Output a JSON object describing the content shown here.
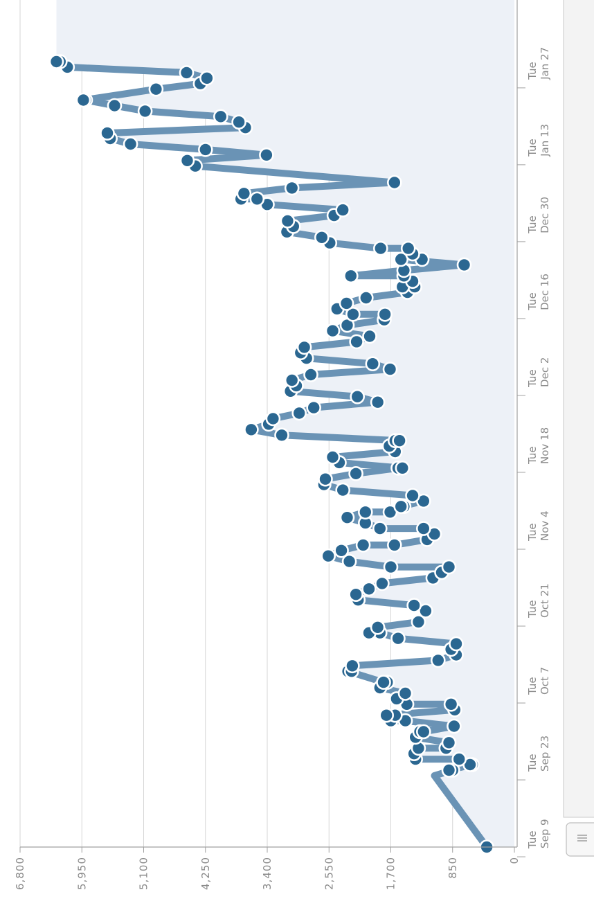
{
  "chart_data": {
    "type": "line",
    "orientation": "rotated-90",
    "y_tick_labels": [
      "0",
      "850",
      "1,700",
      "2,550",
      "3,400",
      "4,250",
      "5,100",
      "5,950",
      "6,800"
    ],
    "y_ticks": [
      0,
      850,
      1700,
      2550,
      3400,
      4250,
      5100,
      5950,
      6800
    ],
    "ylim": [
      0,
      6800
    ],
    "x_tick_labels": [
      {
        "day": "Tue",
        "date": "Sep 9"
      },
      {
        "day": "Tue",
        "date": "Sep 23"
      },
      {
        "day": "Tue",
        "date": "Oct 7"
      },
      {
        "day": "Tue",
        "date": "Oct 21"
      },
      {
        "day": "Tue",
        "date": "Nov 4"
      },
      {
        "day": "Tue",
        "date": "Nov 18"
      },
      {
        "day": "Tue",
        "date": "Dec 2"
      },
      {
        "day": "Tue",
        "date": "Dec 16"
      },
      {
        "day": "Tue",
        "date": "Dec 30"
      },
      {
        "day": "Tue",
        "date": "Jan 13"
      },
      {
        "day": "Tue",
        "date": "Jan 27"
      }
    ],
    "xlim": [
      "Sep 8",
      "Feb 2"
    ],
    "grid": true,
    "colors": {
      "line": "#6a93b5",
      "marker": "#2b6791",
      "area": "#edf1f7",
      "grid": "#d6d6d6",
      "axis": "#a0a0a0"
    },
    "series": [
      {
        "points": [
          [
            "Sep 8",
            380
          ],
          [
            "Sep 21",
            1100
          ],
          [
            "Sep 22",
            850
          ],
          [
            "Sep 22",
            900
          ],
          [
            "Sep 23",
            580
          ],
          [
            "Sep 23",
            610
          ],
          [
            "Sep 24",
            760
          ],
          [
            "Sep 24",
            1360
          ],
          [
            "Sep 25",
            1380
          ],
          [
            "Sep 26",
            1320
          ],
          [
            "Sep 26",
            940
          ],
          [
            "Sep 27",
            900
          ],
          [
            "Sep 28",
            1360
          ],
          [
            "Sep 29",
            1300
          ],
          [
            "Sep 29",
            1250
          ],
          [
            "Sep 30",
            830
          ],
          [
            "Oct 1",
            1500
          ],
          [
            "Oct 1",
            1700
          ],
          [
            "Oct 2",
            1640
          ],
          [
            "Oct 2",
            1760
          ],
          [
            "Oct 3",
            820
          ],
          [
            "Oct 4",
            870
          ],
          [
            "Oct 4",
            1480
          ],
          [
            "Oct 5",
            1620
          ],
          [
            "Oct 6",
            1500
          ],
          [
            "Oct 7",
            1850
          ],
          [
            "Oct 8",
            1750
          ],
          [
            "Oct 8",
            1800
          ],
          [
            "Oct 10",
            2290
          ],
          [
            "Oct 10",
            2240
          ],
          [
            "Oct 11",
            2230
          ],
          [
            "Oct 12",
            1050
          ],
          [
            "Oct 13",
            800
          ],
          [
            "Oct 14",
            870
          ],
          [
            "Oct 15",
            800
          ],
          [
            "Oct 16",
            1600
          ],
          [
            "Oct 17",
            1850
          ],
          [
            "Oct 17",
            2000
          ],
          [
            "Oct 18",
            1880
          ],
          [
            "Oct 19",
            1320
          ],
          [
            "Oct 21",
            1220
          ],
          [
            "Oct 22",
            1380
          ],
          [
            "Oct 23",
            2150
          ],
          [
            "Oct 24",
            2180
          ],
          [
            "Oct 25",
            2000
          ],
          [
            "Oct 26",
            1820
          ],
          [
            "Oct 27",
            1120
          ],
          [
            "Oct 28",
            1000
          ],
          [
            "Oct 29",
            900
          ],
          [
            "Oct 29",
            1700
          ],
          [
            "Oct 30",
            2270
          ],
          [
            "Oct 31",
            2560
          ],
          [
            "Nov 1",
            2380
          ],
          [
            "Nov 2",
            2080
          ],
          [
            "Nov 2",
            1650
          ],
          [
            "Nov 3",
            1200
          ],
          [
            "Nov 4",
            1100
          ],
          [
            "Nov 5",
            1250
          ],
          [
            "Nov 5",
            1850
          ],
          [
            "Nov 6",
            2050
          ],
          [
            "Nov 7",
            2300
          ],
          [
            "Nov 8",
            2050
          ],
          [
            "Nov 8",
            1710
          ],
          [
            "Nov 9",
            1520
          ],
          [
            "Nov 9",
            1560
          ],
          [
            "Nov 10",
            1250
          ],
          [
            "Nov 11",
            1400
          ],
          [
            "Nov 12",
            2360
          ],
          [
            "Nov 13",
            2620
          ],
          [
            "Nov 14",
            2600
          ],
          [
            "Nov 15",
            2180
          ],
          [
            "Nov 16",
            1600
          ],
          [
            "Nov 16",
            1540
          ],
          [
            "Nov 17",
            2410
          ],
          [
            "Nov 18",
            2500
          ],
          [
            "Nov 19",
            1640
          ],
          [
            "Nov 20",
            1720
          ],
          [
            "Nov 21",
            1640
          ],
          [
            "Nov 21",
            1580
          ],
          [
            "Nov 22",
            3200
          ],
          [
            "Nov 23",
            3620
          ],
          [
            "Nov 24",
            3380
          ],
          [
            "Nov 25",
            3320
          ],
          [
            "Nov 26",
            2960
          ],
          [
            "Nov 27",
            2760
          ],
          [
            "Nov 28",
            1880
          ],
          [
            "Nov 29",
            2160
          ],
          [
            "Nov 30",
            3080
          ],
          [
            "Dec 1",
            3000
          ],
          [
            "Dec 2",
            3060
          ],
          [
            "Dec 3",
            2800
          ],
          [
            "Dec 4",
            1710
          ],
          [
            "Dec 5",
            1950
          ],
          [
            "Dec 6",
            2860
          ],
          [
            "Dec 7",
            2940
          ],
          [
            "Dec 8",
            2890
          ],
          [
            "Dec 9",
            2170
          ],
          [
            "Dec 10",
            1990
          ],
          [
            "Dec 11",
            2500
          ],
          [
            "Dec 12",
            2300
          ],
          [
            "Dec 13",
            1790
          ],
          [
            "Dec 14",
            1780
          ],
          [
            "Dec 14",
            2220
          ],
          [
            "Dec 15",
            2440
          ],
          [
            "Dec 16",
            2310
          ],
          [
            "Dec 17",
            2040
          ],
          [
            "Dec 18",
            1470
          ],
          [
            "Dec 19",
            1370
          ],
          [
            "Dec 19",
            1540
          ],
          [
            "Dec 20",
            1400
          ],
          [
            "Dec 21",
            1520
          ],
          [
            "Dec 21",
            2250
          ],
          [
            "Dec 22",
            1520
          ],
          [
            "Dec 23",
            690
          ],
          [
            "Dec 24",
            1560
          ],
          [
            "Dec 24",
            1270
          ],
          [
            "Dec 25",
            1400
          ],
          [
            "Dec 26",
            1460
          ],
          [
            "Dec 26",
            1840
          ],
          [
            "Dec 27",
            2540
          ],
          [
            "Dec 28",
            2650
          ],
          [
            "Dec 29",
            3130
          ],
          [
            "Dec 30",
            3040
          ],
          [
            "Dec 31",
            3120
          ],
          [
            "Jan 1",
            2480
          ],
          [
            "Jan 2",
            2360
          ],
          [
            "Jan 3",
            3400
          ],
          [
            "Jan 4",
            3540
          ],
          [
            "Jan 4",
            3760
          ],
          [
            "Jan 5",
            3720
          ],
          [
            "Jan 6",
            3060
          ],
          [
            "Jan 7",
            1650
          ],
          [
            "Jan 10",
            4390
          ],
          [
            "Jan 11",
            4500
          ],
          [
            "Jan 12",
            3410
          ],
          [
            "Jan 13",
            4250
          ],
          [
            "Jan 14",
            5280
          ],
          [
            "Jan 15",
            5560
          ],
          [
            "Jan 16",
            5600
          ],
          [
            "Jan 17",
            3700
          ],
          [
            "Jan 18",
            3790
          ],
          [
            "Jan 19",
            4040
          ],
          [
            "Jan 20",
            5080
          ],
          [
            "Jan 21",
            5500
          ],
          [
            "Jan 22",
            5900
          ],
          [
            "Jan 22",
            5930
          ],
          [
            "Jan 24",
            4930
          ],
          [
            "Jan 25",
            4320
          ],
          [
            "Jan 26",
            4230
          ],
          [
            "Jan 27",
            4510
          ],
          [
            "Jan 28",
            6150
          ],
          [
            "Jan 29",
            6250
          ],
          [
            "Jan 29",
            6300
          ]
        ]
      }
    ]
  },
  "scrollbar": {
    "grip_icon": "grip-lines-icon"
  }
}
